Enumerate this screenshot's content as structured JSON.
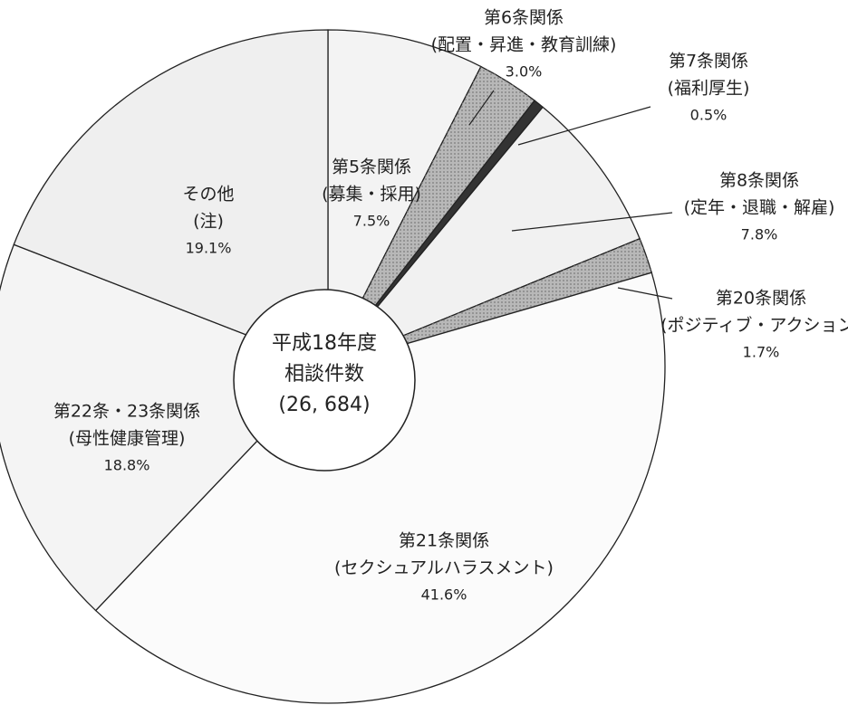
{
  "chart_data": {
    "type": "pie",
    "categories": [
      "第5条関係",
      "第6条関係",
      "第7条関係",
      "第8条関係",
      "第20条関係",
      "第21条関係",
      "第22条・23条関係",
      "その他"
    ],
    "notes": [
      "(募集・採用)",
      "(配置・昇進・教育訓練)",
      "(福利厚生)",
      "(定年・退職・解雇)",
      "(ポジティブ・アクション)",
      "(セクシュアルハラスメント)",
      "(母性健康管理)",
      "(注)"
    ],
    "values": [
      7.5,
      3.0,
      0.5,
      7.8,
      1.7,
      41.6,
      18.8,
      19.1
    ],
    "value_labels": [
      "7.5%",
      "3.0%",
      "0.5%",
      "7.8%",
      "1.7%",
      "41.6%",
      "18.8%",
      "19.1%"
    ],
    "colors": [
      "#f3f3f3",
      "#b8b8b8",
      "#333333",
      "#f1f1f1",
      "#b8b8b8",
      "#fbfbfb",
      "#f4f4f4",
      "#efefef"
    ],
    "center_label": [
      "平成18年度",
      "相談件数",
      "(26, 684)"
    ]
  }
}
